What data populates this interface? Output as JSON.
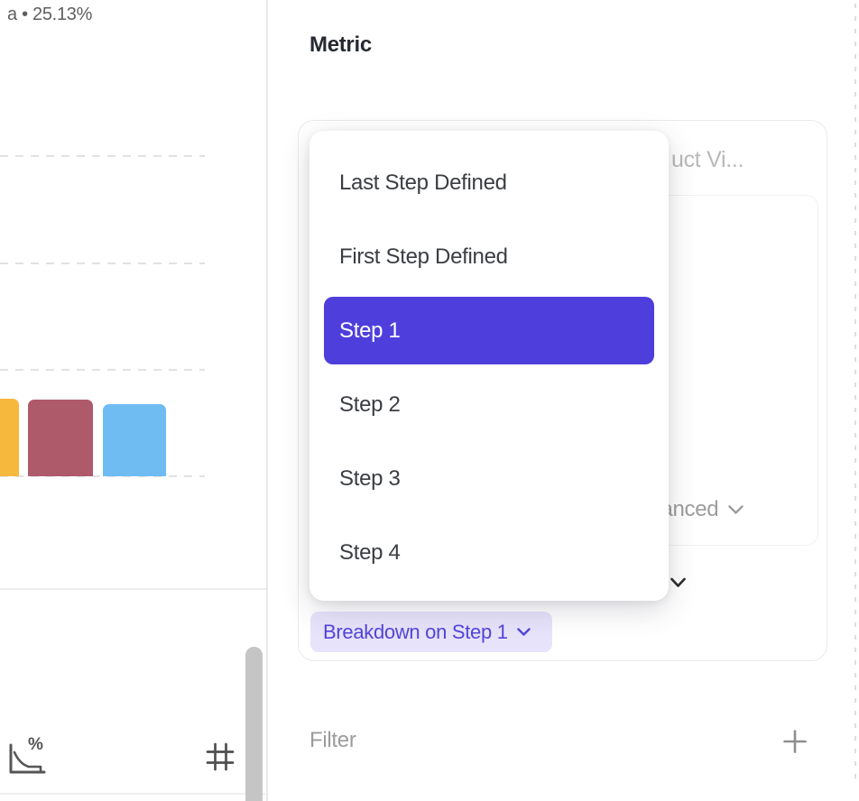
{
  "left_panel": {
    "series_label": "a • 25.13%",
    "chart": {
      "type": "bar",
      "visible_value_label": "a • 25.13%",
      "bars": [
        {
          "name": "funnel-bar-1",
          "color": "#f6b83d"
        },
        {
          "name": "funnel-bar-2",
          "color": "#af5a6b"
        },
        {
          "name": "funnel-bar-3",
          "color": "#6fbcf3"
        }
      ],
      "gridlines": "dashed"
    },
    "footer_icons": [
      {
        "name": "conversion-chart-percent-icon"
      },
      {
        "name": "grid-hash-icon"
      }
    ]
  },
  "right_panel": {
    "section_title": "Metric",
    "metric_card": {
      "event_label_truncated": "uct Vi...",
      "advanced_label": "Advanced",
      "breakdown_chip_label": "Breakdown on Step 1"
    },
    "dropdown": {
      "items": [
        {
          "label": "Last Step Defined",
          "selected": false
        },
        {
          "label": "First Step Defined",
          "selected": false
        },
        {
          "label": "Step 1",
          "selected": true
        },
        {
          "label": "Step 2",
          "selected": false
        },
        {
          "label": "Step 3",
          "selected": false
        },
        {
          "label": "Step 4",
          "selected": false
        }
      ],
      "selected_value": "Step 1"
    },
    "filter_section": {
      "label": "Filter",
      "add_icon": "plus-icon"
    }
  },
  "colors": {
    "dropdown_selected_bg": "#4e3fdc",
    "dropdown_selected_text": "#ffffff",
    "chip_bg": "#e7e3fb",
    "chip_text": "#5345d9",
    "bar_yellow": "#f6b83d",
    "bar_red": "#af5a6b",
    "bar_blue": "#6fbcf3",
    "scrollbar": "#c5c5c5"
  }
}
